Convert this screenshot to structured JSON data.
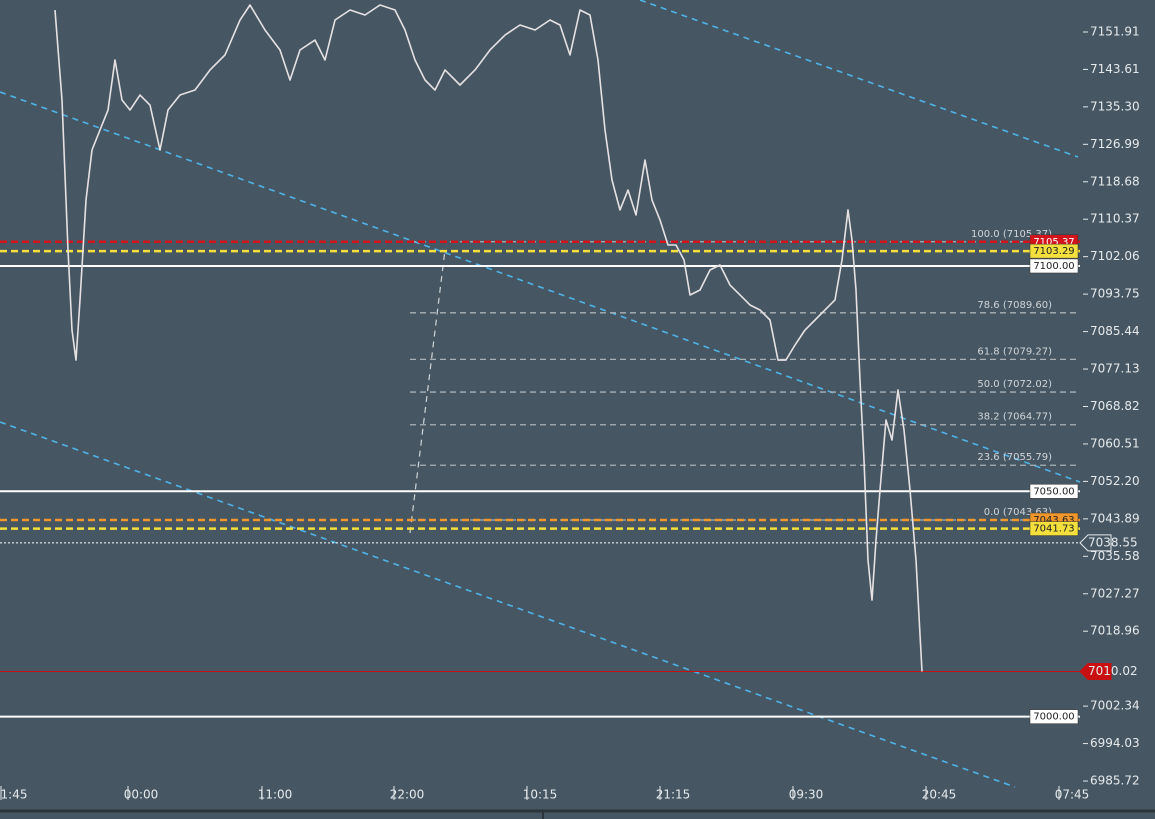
{
  "chart_data": {
    "type": "line",
    "xlim": [
      0,
      1080
    ],
    "ylim": [
      6979.29,
      7159.01
    ],
    "xticks": [
      {
        "value": 14,
        "label": "1:45"
      },
      {
        "value": 141,
        "label": "00:00"
      },
      {
        "value": 275,
        "label": "11:00"
      },
      {
        "value": 407,
        "label": "22:00"
      },
      {
        "value": 540,
        "label": "10:15"
      },
      {
        "value": 673,
        "label": "21:15"
      },
      {
        "value": 806,
        "label": "09:30"
      },
      {
        "value": 939,
        "label": "20:45"
      },
      {
        "value": 1072,
        "label": "07:45"
      }
    ],
    "yticks": [
      7151.91,
      7143.61,
      {
        "value": 7135.3,
        "label": "7135.30"
      },
      7126.99,
      7118.68,
      7110.37,
      7102.06,
      7093.75,
      7085.44,
      7077.13,
      7068.82,
      7060.51,
      {
        "value": 7052.2,
        "label": "7052.20"
      },
      7043.89,
      7035.58,
      7027.27,
      7018.96,
      7002.34,
      6994.03,
      6985.72
    ],
    "series": [
      {
        "color": "#e6e2e4",
        "x": [
          55,
          62,
          68,
          72,
          76,
          80,
          86,
          92,
          100,
          108,
          115,
          122,
          130,
          140,
          150,
          160,
          168,
          180,
          195,
          210,
          225,
          240,
          250,
          265,
          280,
          290,
          300,
          315,
          325,
          335,
          350,
          365,
          380,
          395,
          405,
          415,
          425,
          435,
          445,
          460,
          475,
          490,
          505,
          520,
          535,
          550,
          560,
          570,
          580,
          590,
          598,
          605,
          612,
          620,
          628,
          636,
          645,
          652,
          660,
          668,
          676,
          684,
          690,
          700,
          710,
          720,
          730,
          740,
          750,
          760,
          770,
          778,
          786,
          795,
          805,
          815,
          825,
          835,
          842,
          848,
          852,
          856,
          860,
          864,
          868,
          872,
          876,
          880,
          886,
          892,
          898,
          904,
          910,
          916,
          922
        ],
        "values": [
          7156.79,
          7136.82,
          7103.54,
          7085.79,
          7079.13,
          7092.45,
          7114.63,
          7125.73,
          7130.17,
          7134.6,
          7145.7,
          7136.82,
          7134.6,
          7137.93,
          7135.71,
          7125.73,
          7134.6,
          7137.93,
          7139.04,
          7143.48,
          7146.81,
          7154.57,
          7157.9,
          7152.35,
          7147.92,
          7141.26,
          7147.92,
          7150.13,
          7145.7,
          7154.57,
          7156.79,
          7155.68,
          7157.9,
          7156.79,
          7152.35,
          7145.7,
          7141.26,
          7139.04,
          7143.48,
          7140.15,
          7143.48,
          7147.92,
          7151.24,
          7153.46,
          7152.35,
          7154.57,
          7153.46,
          7146.81,
          7156.79,
          7155.68,
          7145.7,
          7130.17,
          7119.07,
          7112.42,
          7116.85,
          7111.31,
          7123.51,
          7114.63,
          7110.2,
          7104.65,
          7104.65,
          7101.32,
          7093.56,
          7094.66,
          7099.1,
          7100.21,
          7095.77,
          7093.56,
          7091.34,
          7090.23,
          7088.01,
          7079.13,
          7079.13,
          7082.46,
          7085.79,
          7088.01,
          7090.23,
          7092.45,
          7101.32,
          7112.42,
          7105.76,
          7094.66,
          7074.69,
          7056.94,
          7034.75,
          7025.88,
          7039.19,
          7050.29,
          7065.82,
          7061.38,
          7072.48,
          7063.6,
          7050.29,
          7034.75,
          7010.02
        ]
      }
    ],
    "fib_levels": [
      {
        "value": 7105.37,
        "label": "100.0 (7105.37)"
      },
      {
        "value": 7089.6,
        "label": "78.6 (7089.60)"
      },
      {
        "value": 7079.27,
        "label": "61.8 (7079.27)"
      },
      {
        "value": 7072.02,
        "label": "50.0 (7072.02)"
      },
      {
        "value": 7064.77,
        "label": "38.2 (7064.77)"
      },
      {
        "value": 7055.79,
        "label": "23.6 (7055.79)"
      },
      {
        "value": 7043.63,
        "label": "0.0 (7043.63)"
      }
    ],
    "levels": [
      {
        "value": 7105.37,
        "label": "7105.37",
        "color": "#d3141d",
        "style": "dashed",
        "tag": "line"
      },
      {
        "value": 7103.29,
        "label": "7103.29",
        "color": "#f3e03c",
        "style": "dashed",
        "tag": "line"
      },
      {
        "value": 7100.0,
        "label": "7100.00",
        "color": "#ffffff",
        "style": "solid",
        "tag": "line"
      },
      {
        "value": 7050.0,
        "label": "7050.00",
        "color": "#ffffff",
        "style": "solid",
        "tag": "line"
      },
      {
        "value": 7043.63,
        "label": "7043.63",
        "color": "#f0962a",
        "style": "dashed",
        "tag": "line"
      },
      {
        "value": 7041.73,
        "label": "7041.73",
        "color": "#f3e03c",
        "style": "dashed",
        "tag": "line"
      },
      {
        "value": 7038.55,
        "label": "7038.55",
        "color": "#ffffff",
        "style": "dotted",
        "tag": "axis"
      },
      {
        "value": 7010.02,
        "label": "7010.02",
        "color": "#c81010",
        "style": "solid",
        "tag": "axis"
      },
      {
        "value": 7000.0,
        "label": "7000.00",
        "color": "#ffffff",
        "style": "solid",
        "tag": "line"
      }
    ]
  }
}
